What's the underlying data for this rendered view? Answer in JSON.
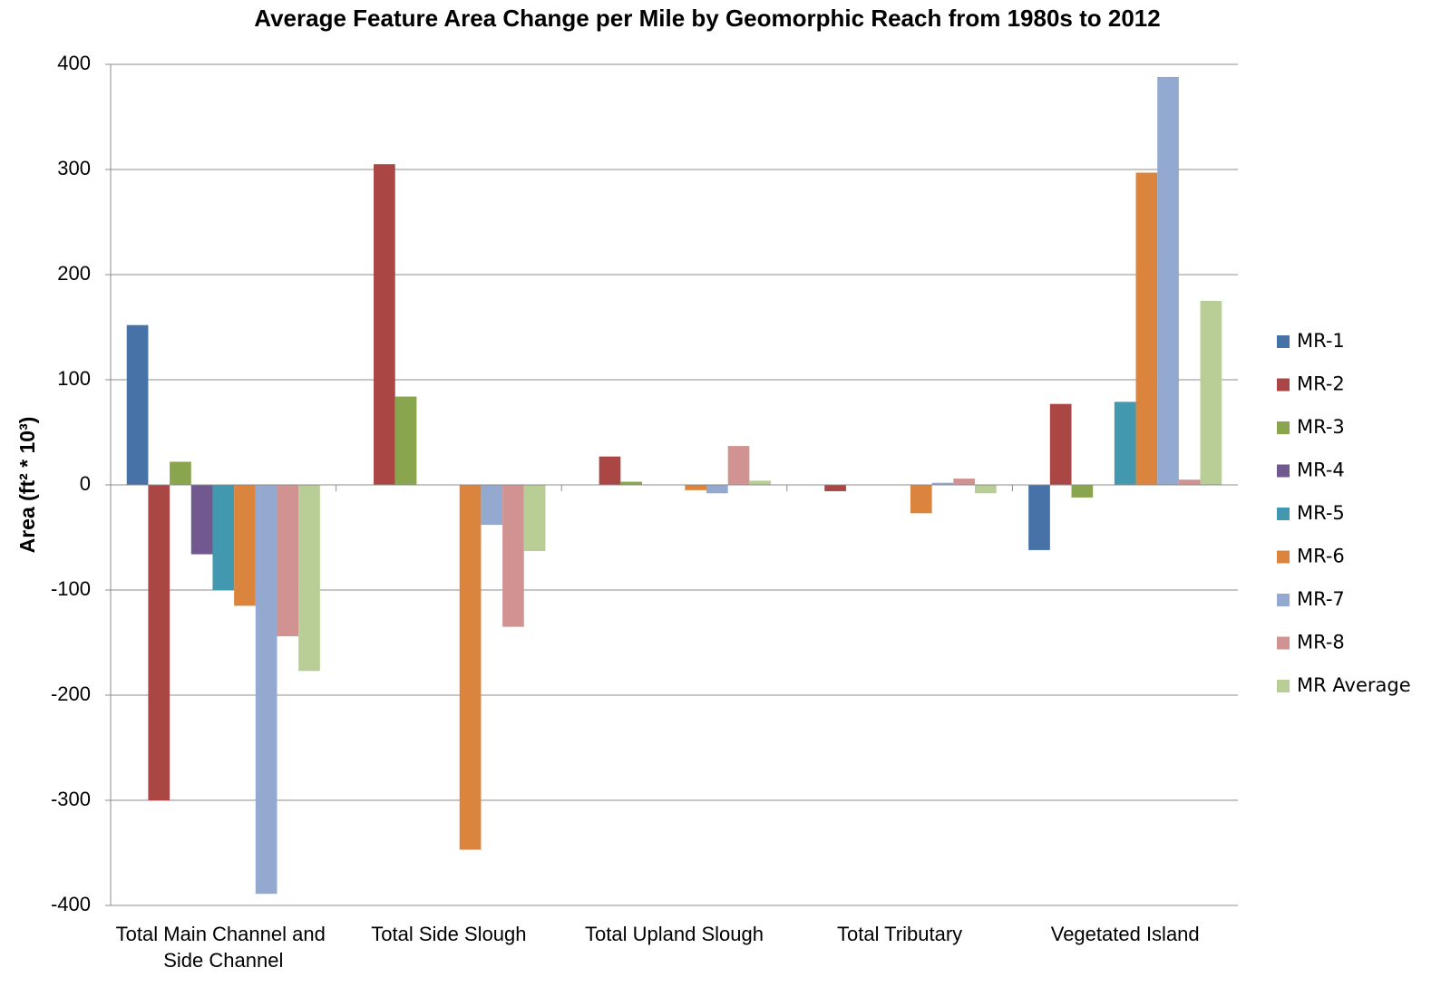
{
  "chart_data": {
    "type": "bar",
    "title": "Average Feature Area Change per Mile by Geomorphic Reach from 1980s to 2012",
    "y_label": "Area (ft² * 10³)",
    "categories": [
      "Total Main Channel and Side Channel",
      "Total Side Slough",
      "Total Upland Slough",
      "Total Tributary",
      "Vegetated Island"
    ],
    "series": [
      {
        "name": "MR-1",
        "color": "#4672a8",
        "values": [
          152,
          0,
          0,
          0,
          -62
        ]
      },
      {
        "name": "MR-2",
        "color": "#aa4644",
        "values": [
          -300,
          305,
          27,
          -6,
          77
        ]
      },
      {
        "name": "MR-3",
        "color": "#89a54e",
        "values": [
          22,
          84,
          3,
          0,
          -12
        ]
      },
      {
        "name": "MR-4",
        "color": "#71588f",
        "values": [
          -66,
          0,
          0,
          0,
          0
        ]
      },
      {
        "name": "MR-5",
        "color": "#4198af",
        "values": [
          -100,
          0,
          0,
          0,
          79
        ]
      },
      {
        "name": "MR-6",
        "color": "#db843d",
        "values": [
          -115,
          -347,
          -5,
          -27,
          297
        ]
      },
      {
        "name": "MR-7",
        "color": "#93a9cf",
        "values": [
          -389,
          -38,
          -8,
          2,
          388
        ]
      },
      {
        "name": "MR-8",
        "color": "#d19392",
        "values": [
          -144,
          -135,
          37,
          6,
          5
        ]
      },
      {
        "name": "MR Average",
        "color": "#b9cd96",
        "values": [
          -177,
          -63,
          4,
          -8,
          175
        ]
      }
    ],
    "ylim": [
      -400,
      400
    ],
    "yticks": [
      -400,
      -300,
      -200,
      -100,
      0,
      100,
      200,
      300,
      400
    ],
    "grid": true,
    "legend": "right"
  }
}
